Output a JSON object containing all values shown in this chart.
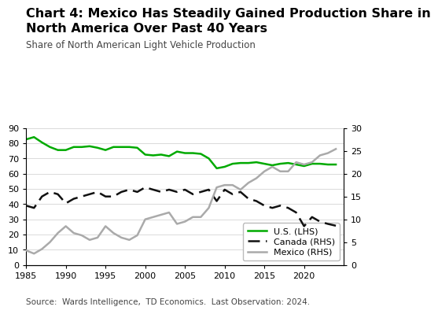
{
  "title_line1": "Chart 4: Mexico Has Steadily Gained Production Share in",
  "title_line2": "North America Over Past 40 Years",
  "subtitle": "Share of North American Light Vehicle Production",
  "source": "Source:  Wards Intelligence,  TD Economics.  Last Observation: 2024.",
  "years": [
    1985,
    1986,
    1987,
    1988,
    1989,
    1990,
    1991,
    1992,
    1993,
    1994,
    1995,
    1996,
    1997,
    1998,
    1999,
    2000,
    2001,
    2002,
    2003,
    2004,
    2005,
    2006,
    2007,
    2008,
    2009,
    2010,
    2011,
    2012,
    2013,
    2014,
    2015,
    2016,
    2017,
    2018,
    2019,
    2020,
    2021,
    2022,
    2023,
    2024
  ],
  "us_lhs": [
    82.5,
    84.0,
    80.5,
    77.5,
    75.5,
    75.5,
    77.5,
    77.5,
    78.0,
    77.0,
    75.5,
    77.5,
    77.5,
    77.5,
    77.0,
    72.5,
    72.0,
    72.5,
    71.5,
    74.5,
    73.5,
    73.5,
    73.0,
    70.0,
    63.5,
    64.5,
    66.5,
    67.0,
    67.0,
    67.5,
    66.5,
    65.5,
    66.5,
    67.0,
    66.0,
    65.0,
    66.5,
    66.5,
    66.0,
    66.0
  ],
  "canada_rhs": [
    13.0,
    12.5,
    15.0,
    16.0,
    15.5,
    13.5,
    14.5,
    15.0,
    15.5,
    16.0,
    15.0,
    15.0,
    16.0,
    16.5,
    16.0,
    17.0,
    16.5,
    16.0,
    16.5,
    16.0,
    16.5,
    15.5,
    16.0,
    16.5,
    14.0,
    16.5,
    15.5,
    16.0,
    14.5,
    14.0,
    13.0,
    12.5,
    13.0,
    12.5,
    11.5,
    8.5,
    10.5,
    9.5,
    9.0,
    8.6
  ],
  "mexico_rhs": [
    3.2,
    2.5,
    3.5,
    5.0,
    7.0,
    8.5,
    7.0,
    6.5,
    5.5,
    6.0,
    8.5,
    7.0,
    6.0,
    5.5,
    6.5,
    10.0,
    10.5,
    11.0,
    11.5,
    9.0,
    9.5,
    10.5,
    10.5,
    12.5,
    17.0,
    17.5,
    17.5,
    16.5,
    18.0,
    19.0,
    20.5,
    21.5,
    20.5,
    20.5,
    22.5,
    22.0,
    22.5,
    24.0,
    24.5,
    25.4
  ],
  "lhs_ylim": [
    0,
    90
  ],
  "rhs_ylim": [
    0,
    30
  ],
  "lhs_yticks": [
    0,
    10,
    20,
    30,
    40,
    50,
    60,
    70,
    80,
    90
  ],
  "rhs_yticks": [
    0,
    5,
    10,
    15,
    20,
    25,
    30
  ],
  "xticks": [
    1985,
    1990,
    1995,
    2000,
    2005,
    2010,
    2015,
    2020
  ],
  "us_color": "#00aa00",
  "canada_color": "#111111",
  "mexico_color": "#aaaaaa",
  "background_color": "#ffffff",
  "title_fontsize": 11.5,
  "subtitle_fontsize": 8.5,
  "axis_fontsize": 8,
  "source_fontsize": 7.5,
  "legend_fontsize": 8
}
